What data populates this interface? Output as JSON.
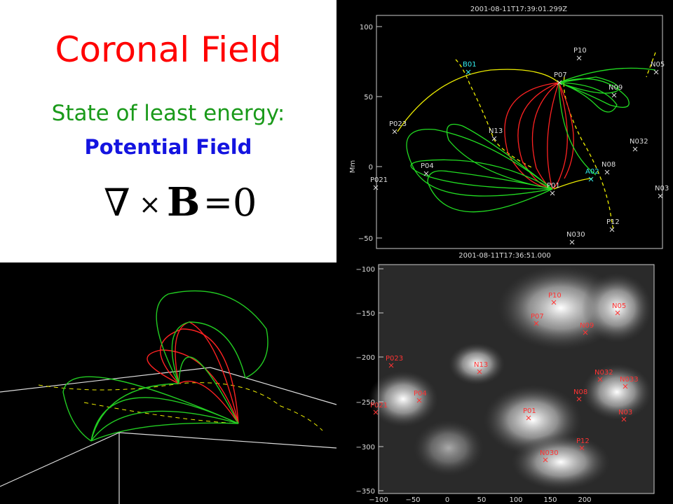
{
  "slide": {
    "title": "Coronal Field",
    "subtitle": "State of least energy:",
    "emphasis": "Potential Field",
    "equation": {
      "nabla": "∇",
      "times": "×",
      "field": "B",
      "equals": "=",
      "rhs": "0"
    }
  },
  "field_plot": {
    "title": "2001-08-11T17:39:01.299Z",
    "y_label": "Mm",
    "yticks": [
      "100",
      "50",
      "0",
      "−50"
    ],
    "labels": [
      "B01",
      "P10",
      "N05",
      "P07",
      "N09",
      "P023",
      "N13",
      "N032",
      "P04",
      "N08",
      "A02",
      "P021",
      "P01",
      "N03",
      "P12",
      "N030"
    ]
  },
  "image_plot": {
    "title": "2001-08-11T17:36:51.000",
    "yticks": [
      "−100",
      "−150",
      "−200",
      "−250",
      "−300",
      "−350"
    ],
    "xticks": [
      "−100",
      "−50",
      "0",
      "50",
      "100",
      "150",
      "200"
    ],
    "labels": [
      "P10",
      "N05",
      "P07",
      "N09",
      "P023",
      "N13",
      "N032",
      "N033",
      "P04",
      "N08",
      "P021",
      "P01",
      "N03",
      "P12",
      "N030"
    ]
  }
}
